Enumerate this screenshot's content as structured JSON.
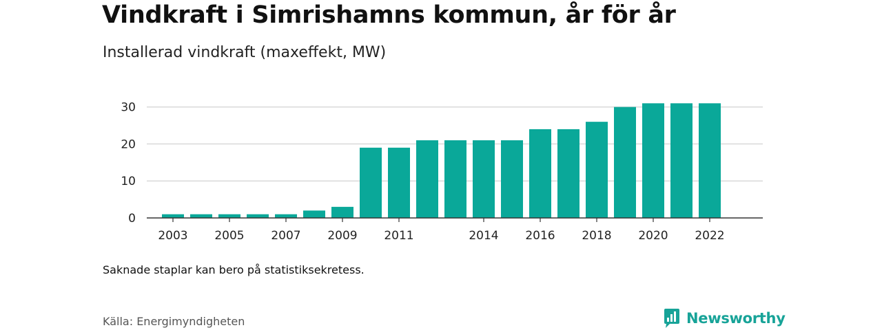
{
  "header": {
    "title": "Vindkraft i Simrishamns kommun, år för år",
    "subtitle": "Installerad vindkraft (maxeffekt, MW)"
  },
  "footer": {
    "note": "Saknade staplar kan bero på statistiksekretess.",
    "source": "Källa: Energimyndigheten",
    "brand": "Newsworthy",
    "brand_icon": "newsworthy-logo-icon"
  },
  "colors": {
    "bar": "#0aa899",
    "grid": "#d9d9d9",
    "axis": "#333333",
    "brand": "#17a398"
  },
  "chart_data": {
    "type": "bar",
    "categories": [
      "2003",
      "2004",
      "2005",
      "2006",
      "2007",
      "2008",
      "2009",
      "2010",
      "2011",
      "2012",
      "2013",
      "2014",
      "2015",
      "2016",
      "2017",
      "2018",
      "2019",
      "2020",
      "2021",
      "2022"
    ],
    "values": [
      1,
      1,
      1,
      1,
      1,
      2,
      3,
      19,
      19,
      21,
      21,
      21,
      21,
      24,
      24,
      26,
      30,
      31,
      31,
      31
    ],
    "x_tick_labels": [
      "2003",
      "2005",
      "2007",
      "2009",
      "2011",
      "2014",
      "2016",
      "2018",
      "2020",
      "2022"
    ],
    "y_ticks": [
      0,
      10,
      20,
      30
    ],
    "ylim": [
      0,
      33
    ],
    "grid": true,
    "title": "Vindkraft i Simrishamns kommun, år för år",
    "subtitle": "Installerad vindkraft (maxeffekt, MW)"
  }
}
